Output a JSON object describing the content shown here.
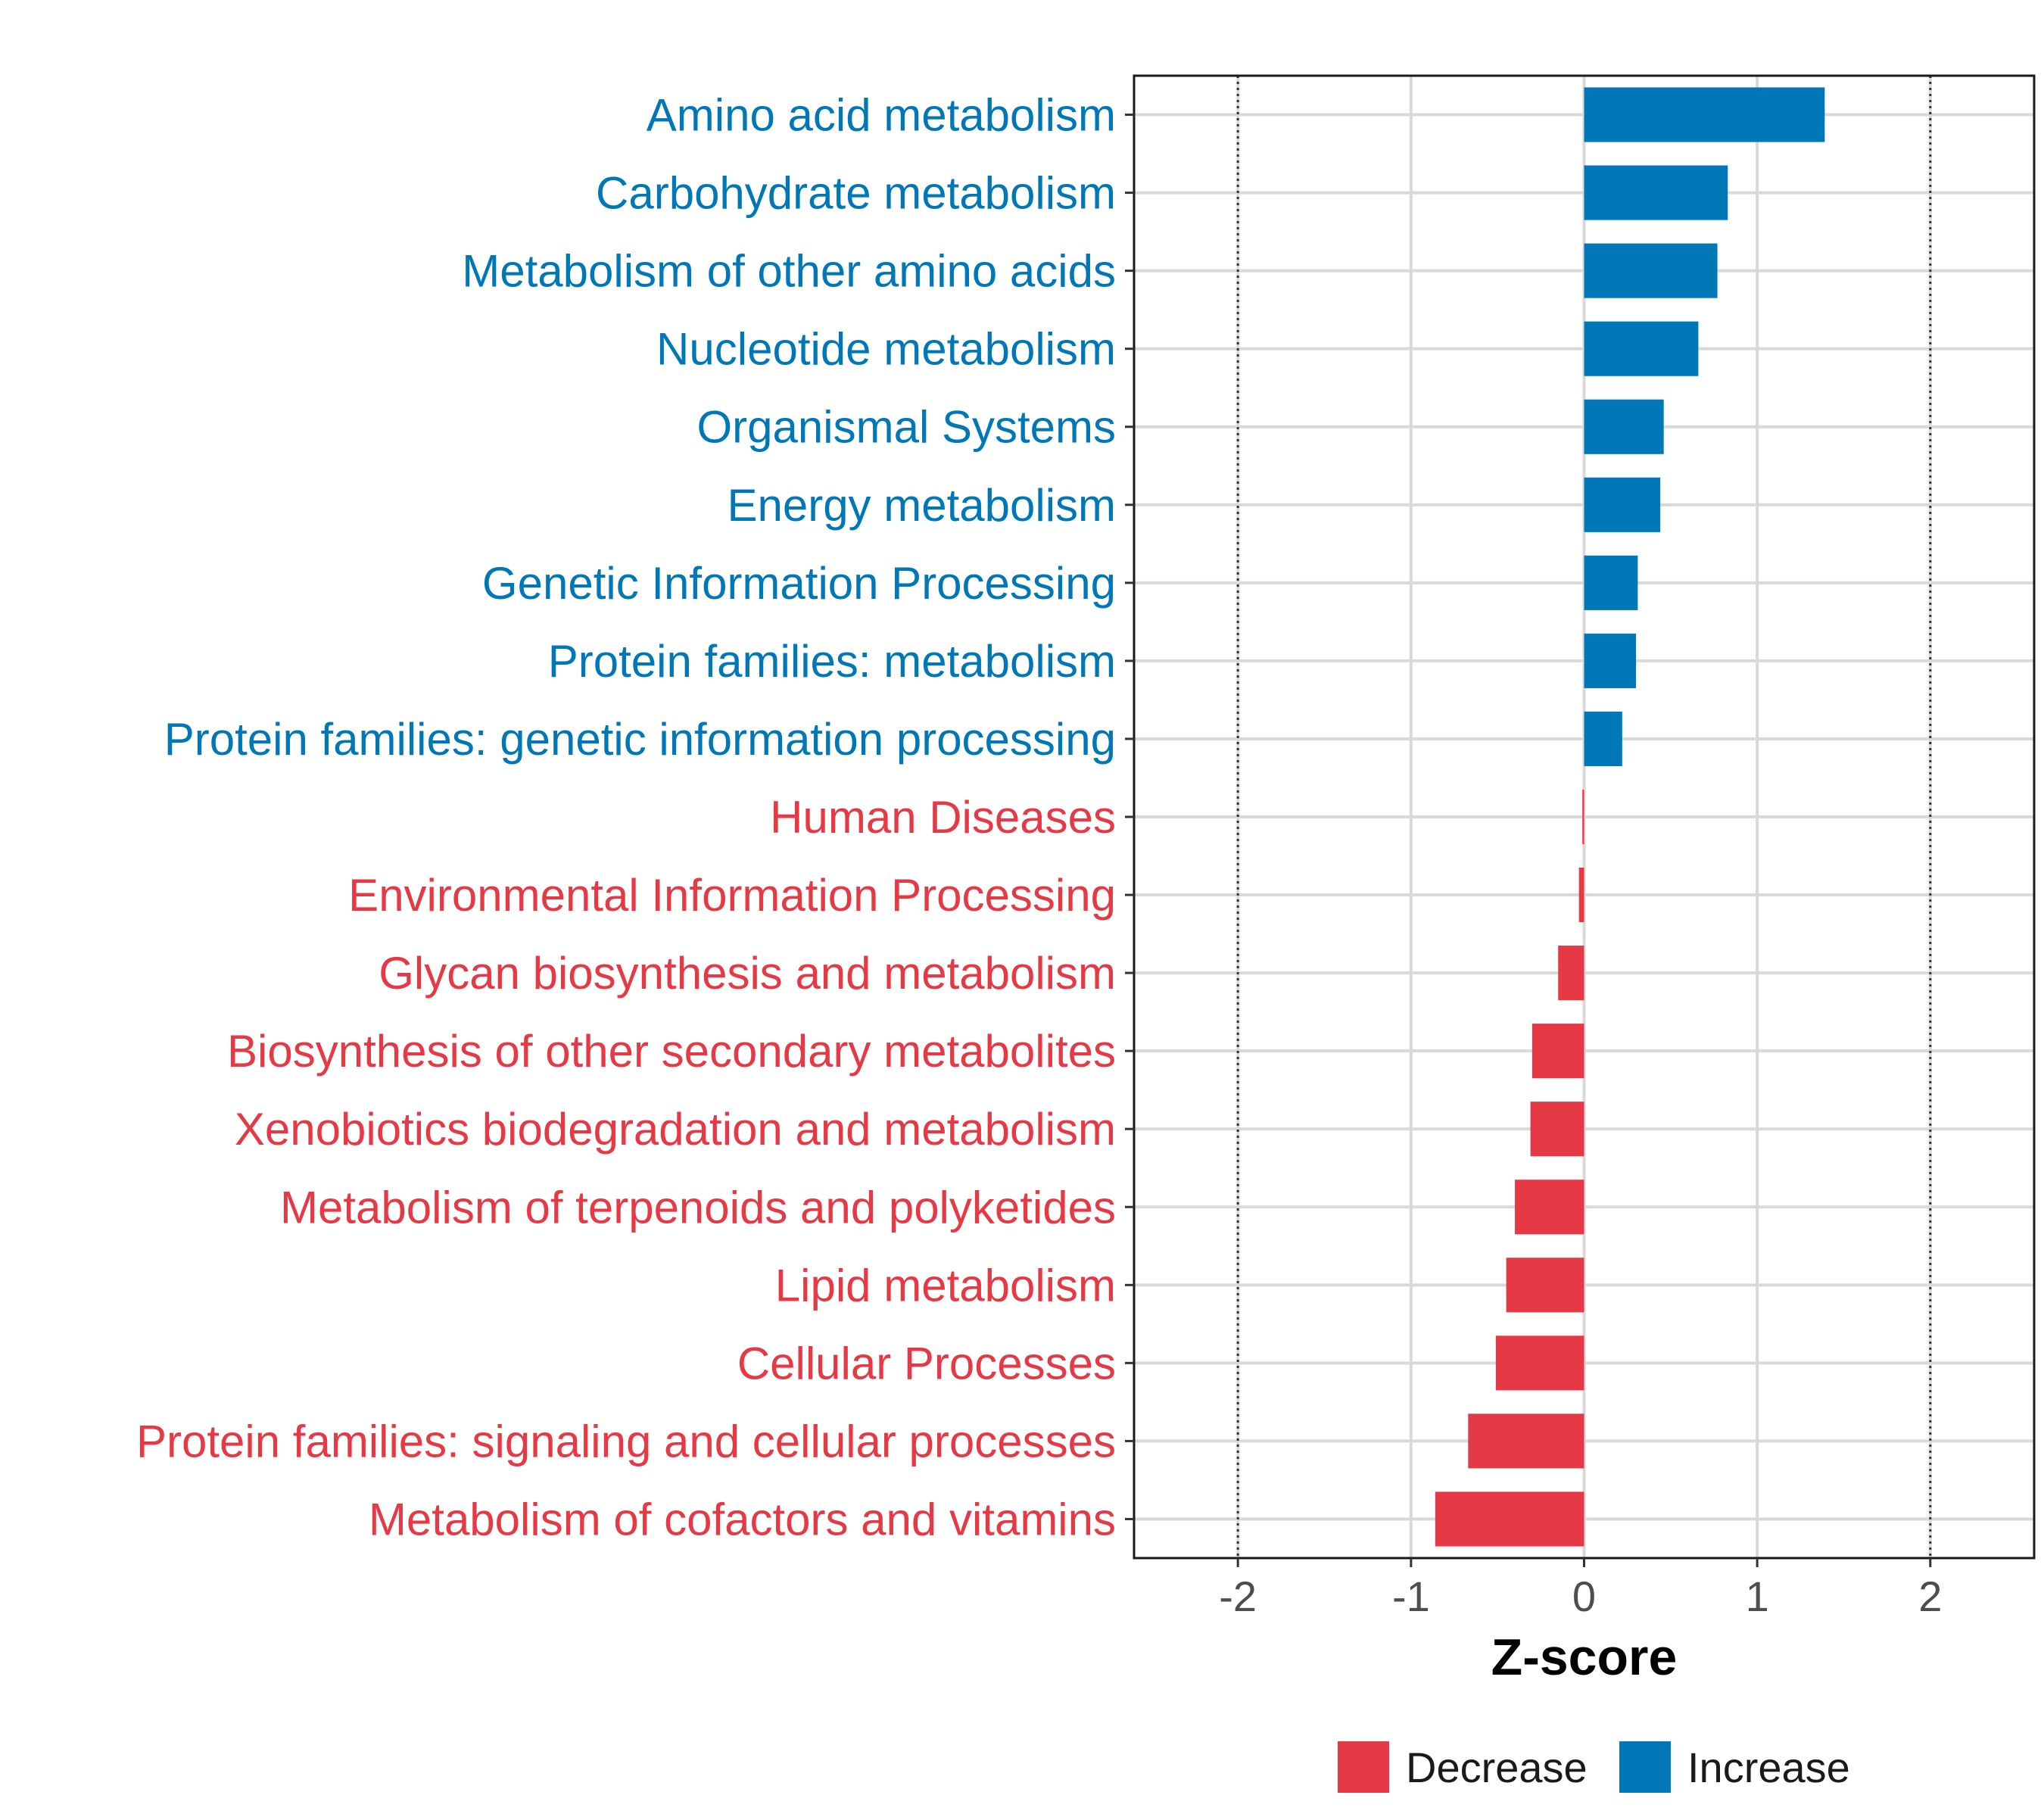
{
  "chart_data": {
    "type": "bar",
    "orientation": "horizontal",
    "xlabel": "Z-score",
    "xlim": [
      -2.6,
      2.6
    ],
    "xticks": [
      -2,
      -1,
      0,
      1,
      2
    ],
    "xtick_labels": [
      "-2",
      "-1",
      "0",
      "1",
      "2"
    ],
    "reference_lines": [
      -2,
      2
    ],
    "grid": true,
    "legend_position": "bottom",
    "categories": [
      "Amino acid metabolism",
      "Carbohydrate metabolism",
      "Metabolism of other amino acids",
      "Nucleotide metabolism",
      "Organismal Systems",
      "Energy metabolism",
      "Genetic Information Processing",
      "Protein families: metabolism",
      "Protein families: genetic information processing",
      "Human Diseases",
      "Environmental Information Processing",
      "Glycan biosynthesis and metabolism",
      "Biosynthesis of other secondary metabolites",
      "Xenobiotics biodegradation and metabolism",
      "Metabolism of terpenoids and polyketides",
      "Lipid metabolism",
      "Cellular Processes",
      "Protein families: signaling and cellular processes",
      "Metabolism of cofactors and vitamins"
    ],
    "values": [
      1.39,
      0.83,
      0.77,
      0.66,
      0.46,
      0.44,
      0.31,
      0.3,
      0.22,
      -0.01,
      -0.03,
      -0.15,
      -0.3,
      -0.31,
      -0.4,
      -0.45,
      -0.51,
      -0.67,
      -0.86
    ],
    "groups": [
      "Increase",
      "Increase",
      "Increase",
      "Increase",
      "Increase",
      "Increase",
      "Increase",
      "Increase",
      "Increase",
      "Decrease",
      "Decrease",
      "Decrease",
      "Decrease",
      "Decrease",
      "Decrease",
      "Decrease",
      "Decrease",
      "Decrease",
      "Decrease"
    ],
    "legend": [
      {
        "name": "Decrease",
        "color": "#e63946"
      },
      {
        "name": "Increase",
        "color": "#0077b6"
      }
    ],
    "colors": {
      "Increase": "#0077b6",
      "Decrease": "#e63946"
    }
  }
}
